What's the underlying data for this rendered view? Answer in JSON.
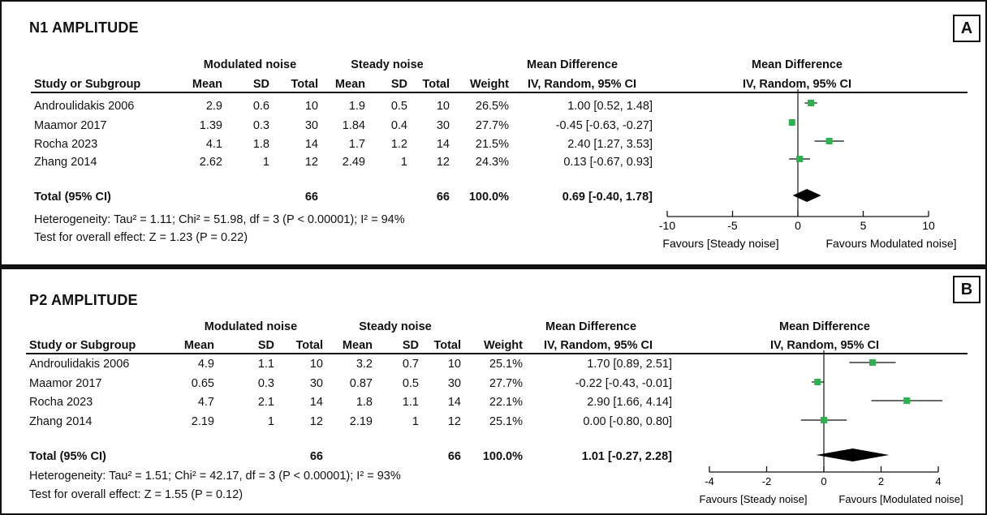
{
  "chart_data": [
    {
      "type": "forest",
      "panel": "A",
      "title": "N1 AMPLITUDE",
      "group1_label": "Modulated noise",
      "group2_label": "Steady noise",
      "columns": [
        "Study or Subgroup",
        "Mean",
        "SD",
        "Total",
        "Mean",
        "SD",
        "Total",
        "Weight",
        "IV, Random, 95% CI"
      ],
      "effect_header": "Mean Difference",
      "plot_header": "Mean Difference",
      "plot_subheader": "IV, Random, 95% CI",
      "studies": [
        {
          "name": "Androulidakis 2006",
          "m1": "2.9",
          "sd1": "0.6",
          "n1": "10",
          "m2": "1.9",
          "sd2": "0.5",
          "n2": "10",
          "weight": "26.5%",
          "ci_text": "1.00 [0.52, 1.48]",
          "est": 1.0,
          "lo": 0.52,
          "hi": 1.48
        },
        {
          "name": "Maamor 2017",
          "m1": "1.39",
          "sd1": "0.3",
          "n1": "30",
          "m2": "1.84",
          "sd2": "0.4",
          "n2": "30",
          "weight": "27.7%",
          "ci_text": "-0.45 [-0.63, -0.27]",
          "est": -0.45,
          "lo": -0.63,
          "hi": -0.27
        },
        {
          "name": "Rocha 2023",
          "m1": "4.1",
          "sd1": "1.8",
          "n1": "14",
          "m2": "1.7",
          "sd2": "1.2",
          "n2": "14",
          "weight": "21.5%",
          "ci_text": "2.40 [1.27, 3.53]",
          "est": 2.4,
          "lo": 1.27,
          "hi": 3.53
        },
        {
          "name": "Zhang 2014",
          "m1": "2.62",
          "sd1": "1",
          "n1": "12",
          "m2": "2.49",
          "sd2": "1",
          "n2": "12",
          "weight": "24.3%",
          "ci_text": "0.13 [-0.67, 0.93]",
          "est": 0.13,
          "lo": -0.67,
          "hi": 0.93
        }
      ],
      "total": {
        "label": "Total (95% CI)",
        "n1": "66",
        "n2": "66",
        "weight": "100.0%",
        "ci_text": "0.69 [-0.40, 1.78]",
        "est": 0.69,
        "lo": -0.4,
        "hi": 1.78
      },
      "heterogeneity": "Heterogeneity: Tau² = 1.11; Chi² = 51.98, df = 3 (P < 0.00001); I² = 94%",
      "overall_effect": "Test for overall effect: Z = 1.23 (P = 0.22)",
      "xlim": [
        -10,
        10
      ],
      "ticks": [
        "-10",
        "-5",
        "0",
        "5",
        "10"
      ],
      "favours_left": "Favours [Steady noise]",
      "favours_right": "Favours Modulated noise]"
    },
    {
      "type": "forest",
      "panel": "B",
      "title": "P2 AMPLITUDE",
      "group1_label": "Modulated noise",
      "group2_label": "Steady noise",
      "columns": [
        "Study or Subgroup",
        "Mean",
        "SD",
        "Total",
        "Mean",
        "SD",
        "Total",
        "Weight",
        "IV, Random, 95% CI"
      ],
      "effect_header": "Mean Difference",
      "plot_header": "Mean Difference",
      "plot_subheader": "IV, Random, 95% CI",
      "studies": [
        {
          "name": "Androulidakis 2006",
          "m1": "4.9",
          "sd1": "1.1",
          "n1": "10",
          "m2": "3.2",
          "sd2": "0.7",
          "n2": "10",
          "weight": "25.1%",
          "ci_text": "1.70 [0.89, 2.51]",
          "est": 1.7,
          "lo": 0.89,
          "hi": 2.51
        },
        {
          "name": "Maamor 2017",
          "m1": "0.65",
          "sd1": "0.3",
          "n1": "30",
          "m2": "0.87",
          "sd2": "0.5",
          "n2": "30",
          "weight": "27.7%",
          "ci_text": "-0.22 [-0.43, -0.01]",
          "est": -0.22,
          "lo": -0.43,
          "hi": -0.01
        },
        {
          "name": "Rocha 2023",
          "m1": "4.7",
          "sd1": "2.1",
          "n1": "14",
          "m2": "1.8",
          "sd2": "1.1",
          "n2": "14",
          "weight": "22.1%",
          "ci_text": "2.90 [1.66, 4.14]",
          "est": 2.9,
          "lo": 1.66,
          "hi": 4.14
        },
        {
          "name": "Zhang 2014",
          "m1": "2.19",
          "sd1": "1",
          "n1": "12",
          "m2": "2.19",
          "sd2": "1",
          "n2": "12",
          "weight": "25.1%",
          "ci_text": "0.00 [-0.80, 0.80]",
          "est": 0.0,
          "lo": -0.8,
          "hi": 0.8
        }
      ],
      "total": {
        "label": "Total (95% CI)",
        "n1": "66",
        "n2": "66",
        "weight": "100.0%",
        "ci_text": "1.01 [-0.27, 2.28]",
        "est": 1.01,
        "lo": -0.27,
        "hi": 2.28
      },
      "heterogeneity": "Heterogeneity: Tau² = 1.51; Chi² = 42.17, df = 3 (P < 0.00001); I² = 93%",
      "overall_effect": "Test for overall effect: Z = 1.55 (P = 0.12)",
      "xlim": [
        -4,
        4
      ],
      "ticks": [
        "-4",
        "-2",
        "0",
        "2",
        "4"
      ],
      "favours_left": "Favours [Steady noise]",
      "favours_right": "Favours [Modulated noise]"
    }
  ],
  "colors": {
    "marker": "#2bb24c",
    "line": "#111111",
    "diamond": "#000000"
  }
}
